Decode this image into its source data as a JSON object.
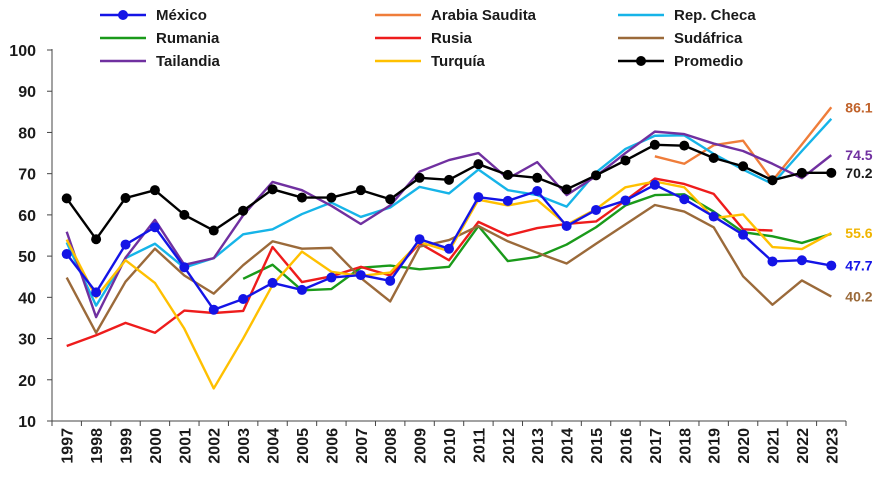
{
  "chart_data": {
    "type": "line",
    "title": "",
    "xlabel": "",
    "ylabel": "",
    "ylim": [
      10,
      100
    ],
    "yticks": [
      10,
      20,
      30,
      40,
      50,
      60,
      70,
      80,
      90,
      100
    ],
    "grid": false,
    "legend": "top",
    "x": [
      "1997",
      "1998",
      "1999",
      "2000",
      "2001",
      "2002",
      "2003",
      "2004",
      "2005",
      "2006",
      "2007",
      "2008",
      "2009",
      "2010",
      "2011",
      "2012",
      "2013",
      "2014",
      "2015",
      "2016",
      "2017",
      "2018",
      "2019",
      "2020",
      "2021",
      "2022",
      "2023"
    ],
    "series": [
      {
        "name": "México",
        "color": "#1414e6",
        "marker": "circle",
        "values": [
          50.5,
          41.2,
          52.8,
          57.0,
          47.3,
          37.0,
          39.6,
          43.5,
          41.8,
          44.8,
          45.4,
          44.0,
          54.1,
          51.8,
          64.3,
          63.4,
          65.8,
          57.3,
          61.2,
          63.5,
          67.3,
          63.8,
          59.6,
          55.2,
          48.7,
          49.0,
          47.7
        ]
      },
      {
        "name": "Arabia Saudita",
        "color": "#ef7d3a",
        "marker": "none",
        "values": [
          null,
          null,
          null,
          null,
          null,
          null,
          null,
          null,
          null,
          null,
          null,
          null,
          null,
          null,
          null,
          null,
          null,
          null,
          null,
          null,
          74.2,
          72.4,
          76.9,
          78.0,
          68.3,
          77.1,
          86.1
        ]
      },
      {
        "name": "Rep. Checa",
        "color": "#16b4e8",
        "marker": "none",
        "values": [
          53.3,
          38.0,
          49.5,
          53.0,
          47.2,
          49.5,
          55.3,
          56.5,
          60.2,
          63.0,
          59.5,
          61.8,
          66.8,
          65.2,
          71.0,
          66.0,
          64.8,
          62.0,
          70.3,
          76.0,
          79.2,
          79.3,
          74.8,
          71.0,
          67.5,
          75.5,
          83.3
        ]
      },
      {
        "name": "Rumania",
        "color": "#1a9a1a",
        "marker": "none",
        "values": [
          null,
          null,
          null,
          null,
          null,
          null,
          44.5,
          47.9,
          41.7,
          42.0,
          47.2,
          47.7,
          46.8,
          47.4,
          57.3,
          48.8,
          49.8,
          52.8,
          57.0,
          62.3,
          64.8,
          65.0,
          60.8,
          55.8,
          54.8,
          53.2,
          55.4
        ]
      },
      {
        "name": "Rusia",
        "color": "#ee1c1c",
        "marker": "none",
        "values": [
          28.2,
          30.8,
          33.8,
          31.4,
          36.8,
          36.2,
          36.7,
          52.2,
          43.7,
          45.1,
          47.4,
          45.3,
          53.1,
          49.0,
          58.3,
          55.0,
          56.8,
          57.8,
          58.4,
          63.5,
          68.8,
          67.5,
          65.1,
          56.5,
          56.2,
          null,
          null
        ]
      },
      {
        "name": "Sudáfrica",
        "color": "#9b6a3a",
        "marker": "none",
        "values": [
          44.8,
          31.4,
          43.8,
          51.8,
          45.3,
          40.9,
          47.8,
          53.6,
          51.8,
          52.0,
          44.7,
          39.0,
          52.3,
          53.9,
          57.3,
          53.6,
          50.8,
          48.2,
          53.0,
          57.7,
          62.4,
          60.8,
          57.0,
          45.1,
          38.2,
          44.1,
          40.2
        ]
      },
      {
        "name": "Tailandia",
        "color": "#7030a0",
        "marker": "none",
        "values": [
          55.9,
          35.2,
          49.6,
          58.8,
          47.9,
          49.5,
          59.9,
          68.0,
          66.0,
          62.2,
          57.8,
          62.3,
          70.5,
          73.3,
          75.0,
          68.8,
          72.8,
          64.8,
          69.4,
          75.0,
          80.2,
          79.6,
          77.3,
          75.5,
          72.4,
          68.9,
          74.5
        ]
      },
      {
        "name": "Turquía",
        "color": "#ffc000",
        "marker": "none",
        "values": [
          54.0,
          40.0,
          49.0,
          43.5,
          32.4,
          17.9,
          30.0,
          43.0,
          51.1,
          46.2,
          45.2,
          46.0,
          53.4,
          51.2,
          63.7,
          62.3,
          63.6,
          57.6,
          61.4,
          66.7,
          68.1,
          66.7,
          59.2,
          60.1,
          52.2,
          51.7,
          55.6
        ]
      },
      {
        "name": "Promedio",
        "color": "#000000",
        "marker": "circle",
        "values": [
          64.0,
          54.1,
          64.1,
          66.0,
          60.0,
          56.2,
          61.0,
          66.2,
          64.2,
          64.2,
          66.0,
          63.8,
          69.0,
          68.5,
          72.3,
          69.7,
          69.0,
          66.2,
          69.6,
          73.2,
          77.0,
          76.8,
          73.8,
          71.8,
          68.4,
          70.2,
          70.2
        ]
      }
    ],
    "end_labels": [
      {
        "series": "Arabia Saudita",
        "text": "86.1",
        "color": "#c0622a"
      },
      {
        "series": "Tailandia",
        "text": "74.5",
        "color": "#7030a0"
      },
      {
        "series": "Promedio",
        "text": "70.2",
        "color": "#1a1a1a"
      },
      {
        "series": "Turquía",
        "text": "55.6",
        "color": "#f0b400"
      },
      {
        "series": "México",
        "text": "47.7",
        "color": "#1414e6"
      },
      {
        "series": "Sudáfrica",
        "text": "40.2",
        "color": "#9b6a3a"
      }
    ]
  }
}
